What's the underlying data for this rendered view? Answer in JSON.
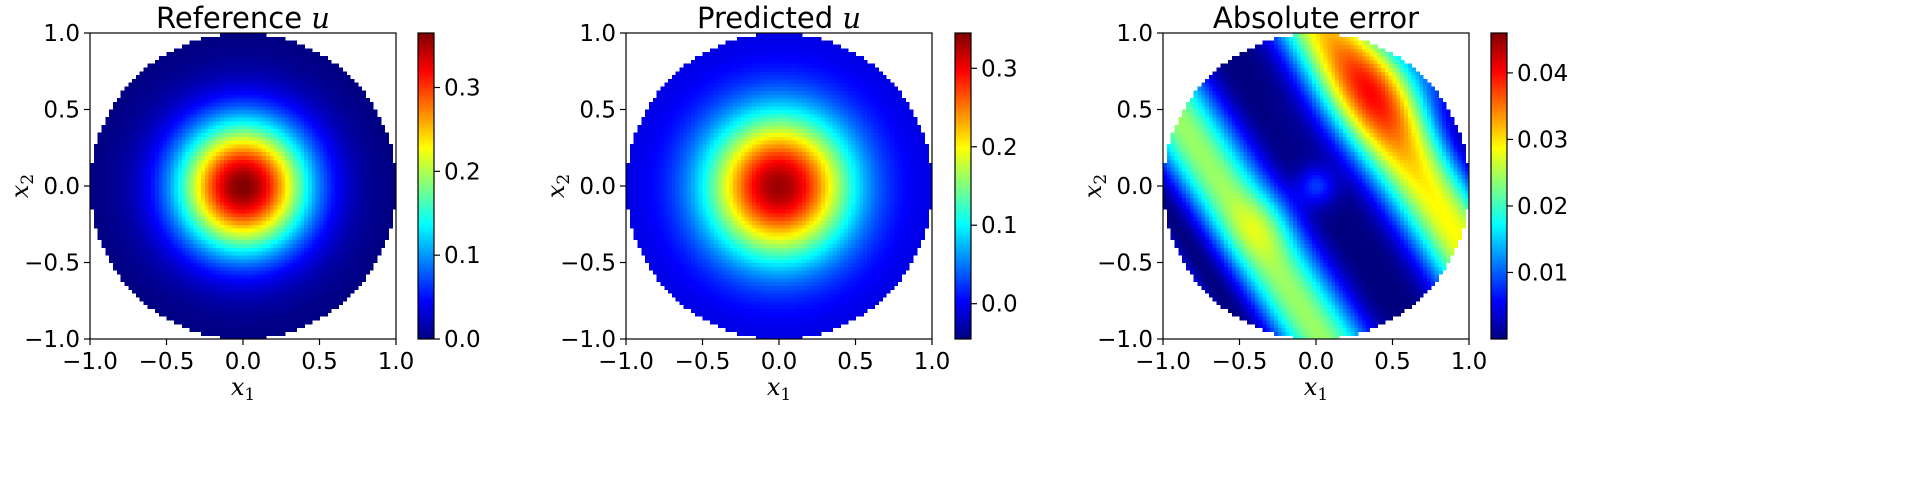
{
  "figure": {
    "colormap": "jet",
    "colormap_stops": [
      "#00007f",
      "#0000ff",
      "#007fff",
      "#00ffff",
      "#7fff7f",
      "#ffff00",
      "#ff7f00",
      "#ff0000",
      "#7f0000"
    ]
  },
  "chart_data": [
    {
      "type": "heatmap",
      "title": "Reference u",
      "title_prefix": "Reference",
      "title_var": "u",
      "xlabel": "x",
      "xlabel_sub": "1",
      "ylabel": "x",
      "ylabel_sub": "2",
      "xlim": [
        -1.0,
        1.0
      ],
      "ylim": [
        -1.0,
        1.0
      ],
      "xticks": [
        "−1.0",
        "−0.5",
        "0.0",
        "0.5",
        "1.0"
      ],
      "yticks": [
        "1.0",
        "0.5",
        "0.0",
        "−0.5",
        "−1.0"
      ],
      "domain": "unit disk",
      "field": "reference",
      "colorbar": {
        "range": [
          0.0,
          0.365
        ],
        "ticks": [
          {
            "value": 0.0,
            "label": "0.0"
          },
          {
            "value": 0.1,
            "label": "0.1"
          },
          {
            "value": 0.2,
            "label": "0.2"
          },
          {
            "value": 0.3,
            "label": "0.3"
          }
        ]
      }
    },
    {
      "type": "heatmap",
      "title": "Predicted u",
      "title_prefix": "Predicted",
      "title_var": "u",
      "xlabel": "x",
      "xlabel_sub": "1",
      "ylabel": "x",
      "ylabel_sub": "2",
      "xlim": [
        -1.0,
        1.0
      ],
      "ylim": [
        -1.0,
        1.0
      ],
      "xticks": [
        "−1.0",
        "−0.5",
        "0.0",
        "0.5",
        "1.0"
      ],
      "yticks": [
        "1.0",
        "0.5",
        "0.0",
        "−0.5",
        "−1.0"
      ],
      "domain": "unit disk",
      "field": "predicted",
      "colorbar": {
        "range": [
          -0.045,
          0.345
        ],
        "ticks": [
          {
            "value": 0.0,
            "label": "0.0"
          },
          {
            "value": 0.1,
            "label": "0.1"
          },
          {
            "value": 0.2,
            "label": "0.2"
          },
          {
            "value": 0.3,
            "label": "0.3"
          }
        ]
      }
    },
    {
      "type": "heatmap",
      "title": "Absolute error",
      "title_prefix": "Absolute error",
      "title_var": "",
      "xlabel": "x",
      "xlabel_sub": "1",
      "ylabel": "x",
      "ylabel_sub": "2",
      "xlim": [
        -1.0,
        1.0
      ],
      "ylim": [
        -1.0,
        1.0
      ],
      "xticks": [
        "−1.0",
        "−0.5",
        "0.0",
        "0.5",
        "1.0"
      ],
      "yticks": [
        "1.0",
        "0.5",
        "0.0",
        "−0.5",
        "−1.0"
      ],
      "domain": "unit disk",
      "field": "error",
      "colorbar": {
        "range": [
          0.0,
          0.046
        ],
        "ticks": [
          {
            "value": 0.01,
            "label": "0.01"
          },
          {
            "value": 0.02,
            "label": "0.02"
          },
          {
            "value": 0.03,
            "label": "0.03"
          },
          {
            "value": 0.04,
            "label": "0.04"
          }
        ]
      }
    }
  ]
}
